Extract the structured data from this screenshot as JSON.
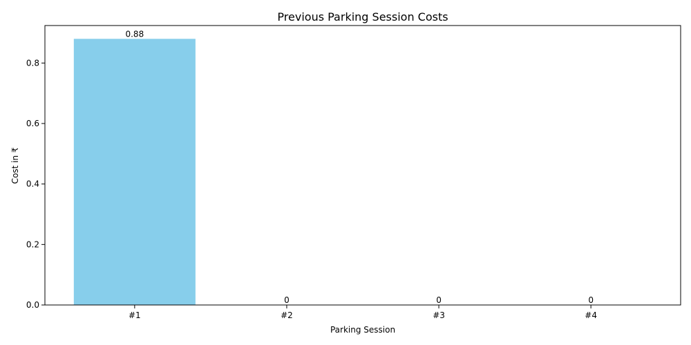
{
  "chart_data": {
    "type": "bar",
    "title": "Previous Parking Session Costs",
    "xlabel": "Parking Session",
    "ylabel": "Cost in ₹",
    "categories": [
      "#1",
      "#2",
      "#3",
      "#4"
    ],
    "values": [
      0.88,
      0,
      0,
      0
    ],
    "data_labels": [
      "0.88",
      "0",
      "0",
      "0"
    ],
    "ylim": [
      0,
      0.924
    ],
    "yticks": [
      0.0,
      0.2,
      0.4,
      0.6,
      0.8
    ],
    "ytick_labels": [
      "0.0",
      "0.2",
      "0.4",
      "0.6",
      "0.8"
    ],
    "bar_color": "#87CEEB",
    "grid": false,
    "legend": "none"
  }
}
